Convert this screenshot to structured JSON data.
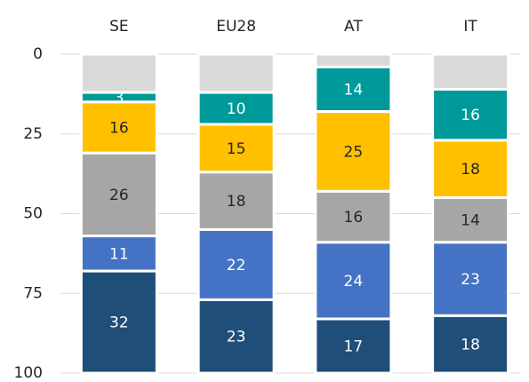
{
  "chart_data": {
    "type": "stacked_bar",
    "orientation": "vertical",
    "y_inverted": true,
    "categories": [
      "SE",
      "EU28",
      "AT",
      "IT"
    ],
    "series": [
      {
        "color": "#d9d9d9",
        "values": [
          12,
          12,
          4,
          11
        ],
        "labels": false
      },
      {
        "color": "#00999a",
        "values": [
          3,
          10,
          14,
          16
        ],
        "labels": true
      },
      {
        "color": "#ffc000",
        "values": [
          16,
          15,
          25,
          18
        ],
        "labels": true
      },
      {
        "color": "#a6a6a6",
        "values": [
          26,
          18,
          16,
          14
        ],
        "labels": true
      },
      {
        "color": "#4472c4",
        "values": [
          11,
          22,
          24,
          23
        ],
        "labels": true
      },
      {
        "color": "#1f4e79",
        "values": [
          32,
          23,
          17,
          18
        ],
        "labels": true
      }
    ],
    "ylim": [
      0,
      100
    ],
    "yticks": [
      0,
      25,
      50,
      75,
      100
    ],
    "grid": true
  }
}
